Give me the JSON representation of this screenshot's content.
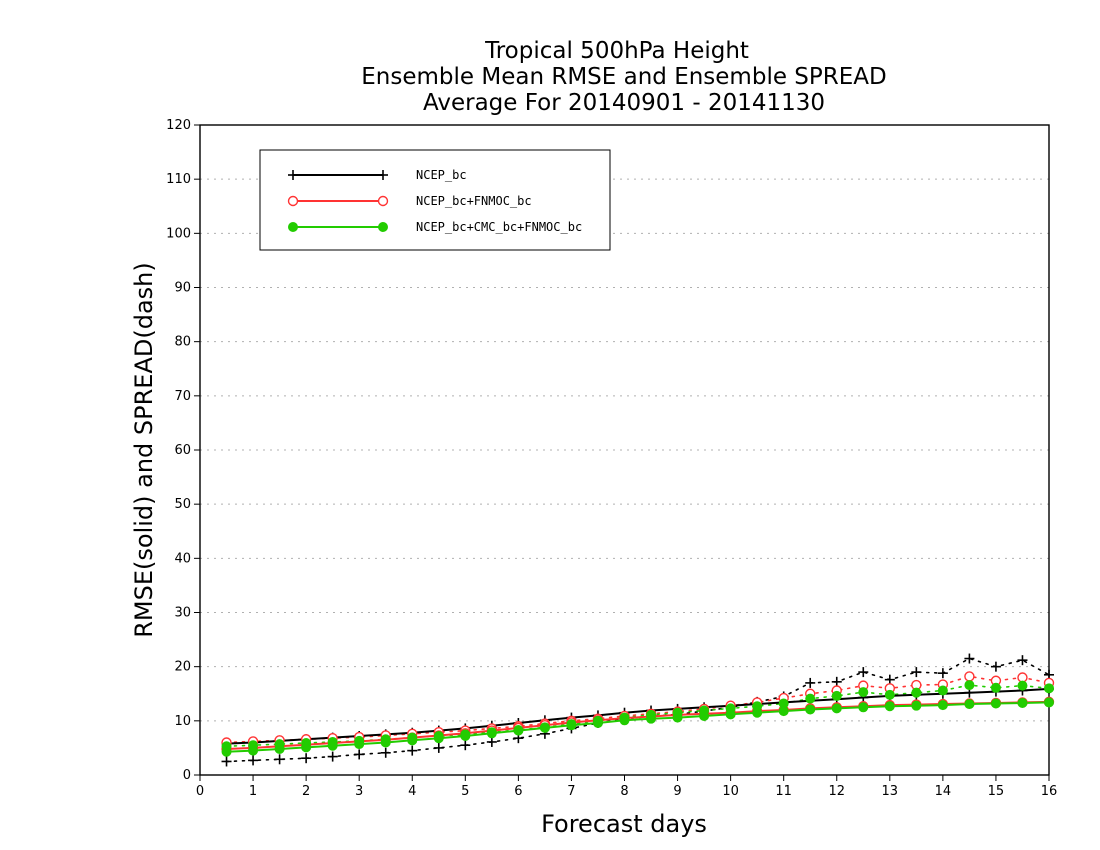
{
  "chart_data": {
    "type": "line",
    "title": [
      "Tropical 500hPa Height",
      "Ensemble Mean RMSE and Ensemble SPREAD",
      "Average For 20140901 - 20141130"
    ],
    "xlabel": "Forecast days",
    "ylabel": "RMSE(solid) and SPREAD(dash)",
    "xlim": [
      0,
      16
    ],
    "ylim": [
      0,
      120
    ],
    "xticks": [
      "0",
      "1",
      "2",
      "3",
      "4",
      "5",
      "6",
      "7",
      "8",
      "9",
      "10",
      "11",
      "12",
      "13",
      "14",
      "15",
      "16"
    ],
    "yticks": [
      "0",
      "10",
      "20",
      "30",
      "40",
      "50",
      "60",
      "70",
      "80",
      "90",
      "100",
      "110",
      "120"
    ],
    "grid": true,
    "legend_position": "top-left",
    "x": [
      0.5,
      1,
      1.5,
      2,
      2.5,
      3,
      3.5,
      4,
      4.5,
      5,
      5.5,
      6,
      6.5,
      7,
      7.5,
      8,
      8.5,
      9,
      9.5,
      10,
      10.5,
      11,
      11.5,
      12,
      12.5,
      13,
      13.5,
      14,
      14.5,
      15,
      15.5,
      16
    ],
    "series": [
      {
        "name": "NCEP_bc",
        "color": "#000000",
        "marker": "plus",
        "rmse": [
          5.8,
          6.0,
          6.3,
          6.6,
          6.9,
          7.2,
          7.5,
          7.8,
          8.2,
          8.6,
          9.1,
          9.6,
          10.1,
          10.6,
          11.0,
          11.5,
          11.9,
          12.2,
          12.5,
          12.8,
          13.1,
          13.4,
          13.7,
          14.0,
          14.3,
          14.6,
          14.8,
          15.0,
          15.2,
          15.4,
          15.6,
          15.9
        ],
        "spread": [
          2.5,
          2.7,
          2.9,
          3.1,
          3.4,
          3.8,
          4.1,
          4.5,
          5.0,
          5.5,
          6.1,
          6.8,
          7.6,
          8.6,
          9.6,
          10.4,
          10.8,
          11.2,
          11.8,
          12.5,
          13.5,
          14.5,
          17.0,
          17.2,
          19.0,
          17.6,
          19.0,
          18.8,
          21.5,
          20.0,
          21.2,
          18.5
        ]
      },
      {
        "name": "NCEP_bc+FNMOC_bc",
        "color": "#ff3333",
        "marker": "circle-open",
        "rmse": [
          4.8,
          5.0,
          5.3,
          5.6,
          5.9,
          6.2,
          6.5,
          6.9,
          7.3,
          7.7,
          8.2,
          8.7,
          9.2,
          9.7,
          10.1,
          10.5,
          10.8,
          11.1,
          11.3,
          11.5,
          11.8,
          12.0,
          12.3,
          12.5,
          12.7,
          12.9,
          13.0,
          13.1,
          13.2,
          13.3,
          13.4,
          13.5
        ],
        "spread": [
          6.0,
          6.2,
          6.4,
          6.6,
          6.8,
          7.0,
          7.3,
          7.6,
          7.9,
          8.2,
          8.6,
          9.0,
          9.5,
          10.0,
          10.4,
          10.9,
          11.3,
          11.7,
          12.2,
          12.8,
          13.4,
          14.2,
          15.0,
          15.6,
          16.5,
          16.0,
          16.6,
          16.7,
          18.2,
          17.4,
          18.0,
          17.0
        ]
      },
      {
        "name": "NCEP_bc+CMC_bc+FNMOC_bc",
        "color": "#22cc00",
        "marker": "circle-filled",
        "rmse": [
          4.3,
          4.5,
          4.8,
          5.1,
          5.4,
          5.7,
          6.0,
          6.4,
          6.8,
          7.2,
          7.7,
          8.2,
          8.7,
          9.2,
          9.6,
          10.1,
          10.4,
          10.6,
          10.9,
          11.2,
          11.5,
          11.8,
          12.1,
          12.3,
          12.5,
          12.7,
          12.8,
          12.9,
          13.1,
          13.2,
          13.3,
          13.4
        ],
        "spread": [
          5.3,
          5.5,
          5.7,
          5.9,
          6.1,
          6.3,
          6.6,
          6.9,
          7.2,
          7.5,
          7.9,
          8.3,
          8.8,
          9.4,
          10.0,
          10.6,
          11.1,
          11.5,
          11.9,
          12.3,
          12.7,
          13.2,
          14.1,
          14.6,
          15.3,
          14.8,
          15.2,
          15.6,
          16.6,
          16.1,
          16.5,
          16.0
        ]
      }
    ]
  }
}
